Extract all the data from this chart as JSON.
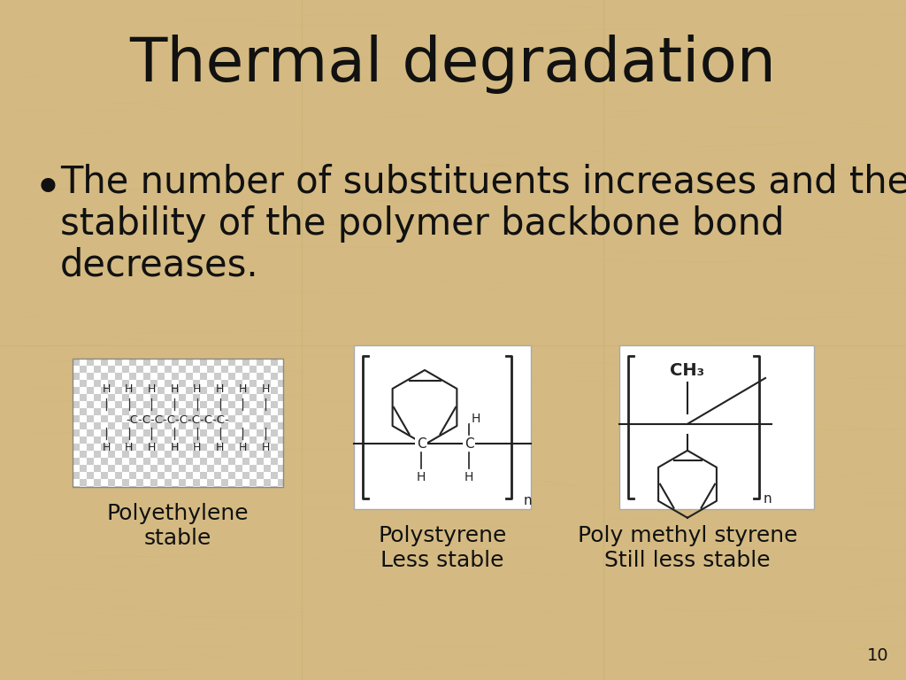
{
  "title": "Thermal degradation",
  "bullet_line1": "The number of substituents increases and the",
  "bullet_line2": "stability of the polymer backbone bond",
  "bullet_line3": "decreases.",
  "bg_color": "#D4BA82",
  "title_fontsize": 50,
  "bullet_fontsize": 30,
  "label1": "Polyethylene\nstable",
  "label2": "Polystyrene\nLess stable",
  "label3": "Poly methyl styrene\nStill less stable",
  "page_number": "10",
  "grid_line_color": "#C8B070",
  "text_color": "#111111"
}
